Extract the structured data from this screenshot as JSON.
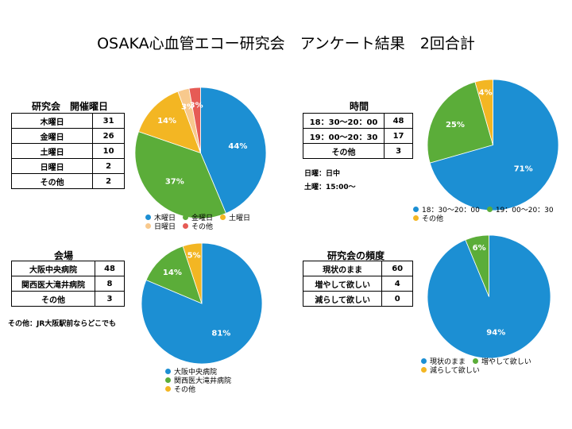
{
  "page_title": "OSAKA心血管エコー研究会　アンケート結果　2回合計",
  "colors": {
    "blue": "#1c8fd3",
    "green": "#5bad39",
    "yellow": "#f3b623",
    "peach": "#f8c98d",
    "red": "#e65b55"
  },
  "chart_data": [
    {
      "id": "weekday",
      "type": "pie",
      "title": "研究会　開催曜日",
      "categories": [
        "木曜日",
        "金曜日",
        "土曜日",
        "日曜日",
        "その他"
      ],
      "values": [
        31,
        26,
        10,
        2,
        2
      ],
      "value_labels": [
        "44%",
        "37%",
        "14%",
        "3%",
        "3%"
      ],
      "colors": [
        "#1c8fd3",
        "#5bad39",
        "#f3b623",
        "#f8c98d",
        "#e65b55"
      ],
      "legend": "bottom"
    },
    {
      "id": "time",
      "type": "pie",
      "title": "時間",
      "categories": [
        "18：30〜20：00",
        "19：00〜20：30",
        "その他"
      ],
      "values": [
        48,
        17,
        3
      ],
      "value_labels": [
        "71%",
        "25%",
        "4%"
      ],
      "colors": [
        "#1c8fd3",
        "#5bad39",
        "#f3b623"
      ],
      "legend": "bottom"
    },
    {
      "id": "venue",
      "type": "pie",
      "title": "会場",
      "categories": [
        "大阪中央病院",
        "関西医大滝井病院",
        "その他"
      ],
      "values": [
        48,
        8,
        3
      ],
      "value_labels": [
        "81%",
        "14%",
        "5%"
      ],
      "colors": [
        "#1c8fd3",
        "#5bad39",
        "#f3b623"
      ],
      "legend": "bottom"
    },
    {
      "id": "frequency",
      "type": "pie",
      "title": "研究会の頻度",
      "categories": [
        "現状のまま",
        "増やして欲しい",
        "減らして欲しい"
      ],
      "values": [
        60,
        4,
        0
      ],
      "value_labels": [
        "94%",
        "6%",
        ""
      ],
      "colors": [
        "#1c8fd3",
        "#5bad39",
        "#f3b623"
      ],
      "legend": "bottom"
    }
  ],
  "notes": {
    "time_1": "日曜：日中",
    "time_2": "土曜：15:00〜",
    "venue_1": "その他：JR大阪駅前ならどこでも"
  }
}
